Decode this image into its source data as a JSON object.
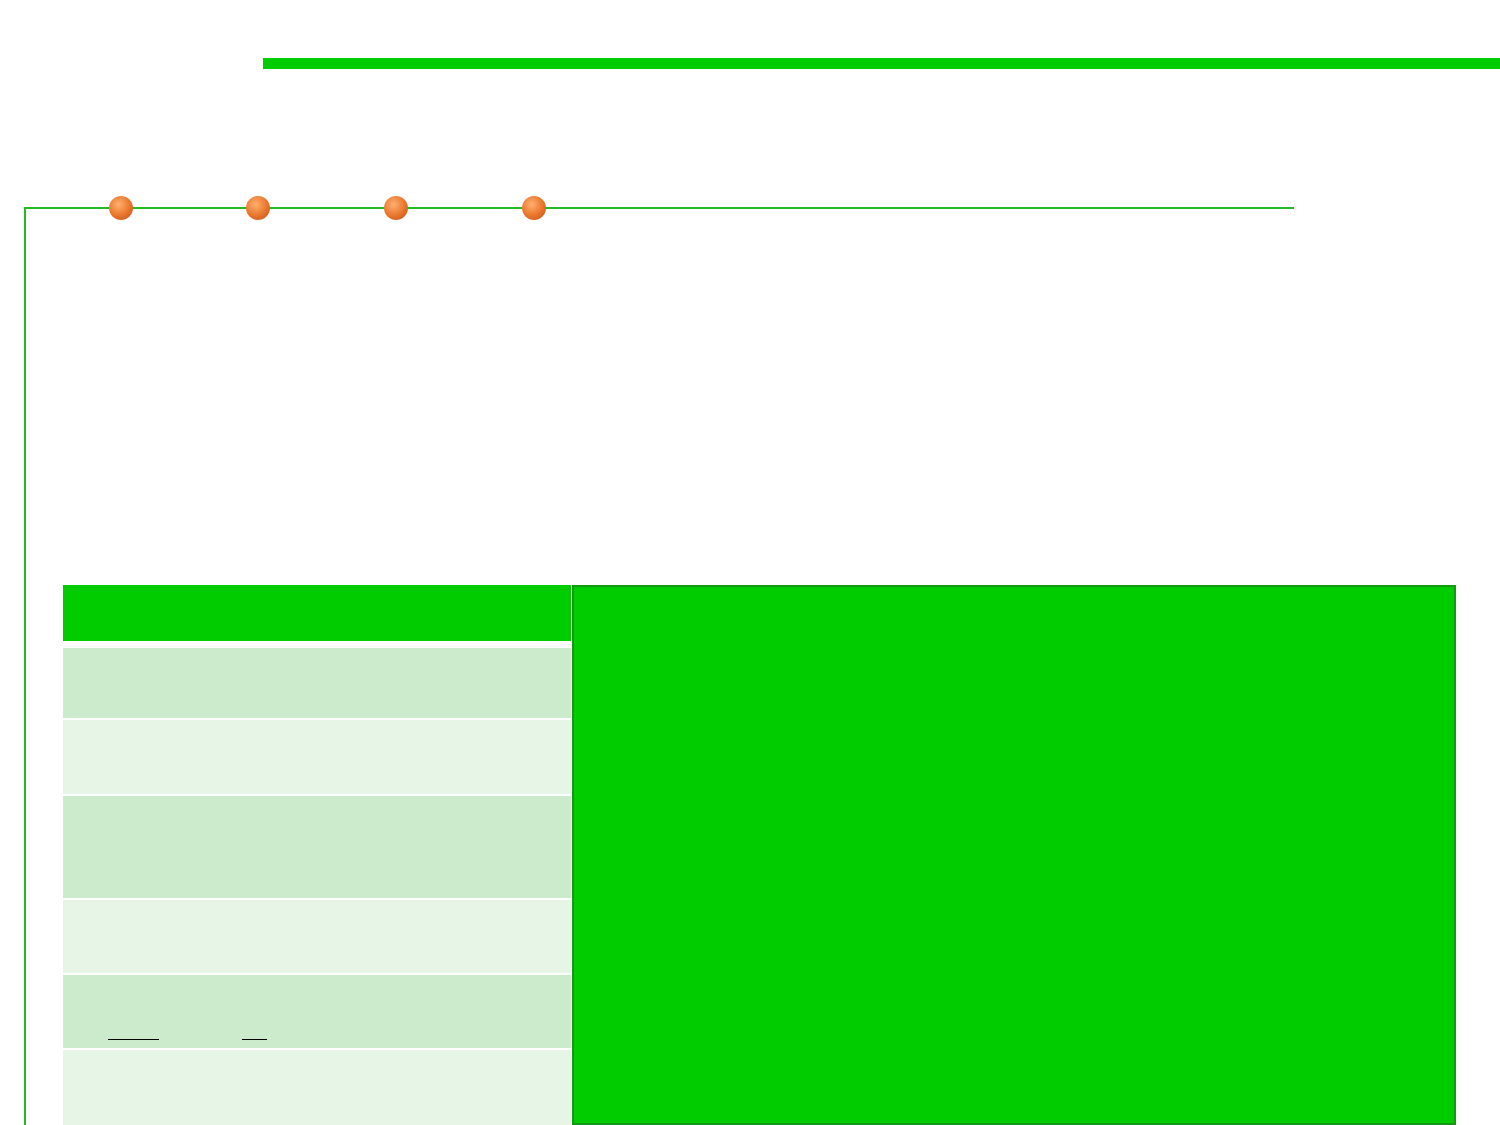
{
  "colors": {
    "accent_green": "#00cc00",
    "rule_green": "#22bb22",
    "bullet_orange": "#e8742a",
    "row_dark": "#ccebcc",
    "row_light": "#e6f5e6",
    "panel_border": "#149914"
  },
  "bullets": [
    {
      "name": "bullet-1"
    },
    {
      "name": "bullet-2"
    },
    {
      "name": "bullet-3"
    },
    {
      "name": "bullet-4"
    }
  ],
  "table": {
    "header": "",
    "rows": [
      "",
      "",
      "",
      "",
      "",
      ""
    ]
  },
  "panel": {
    "text": ""
  }
}
